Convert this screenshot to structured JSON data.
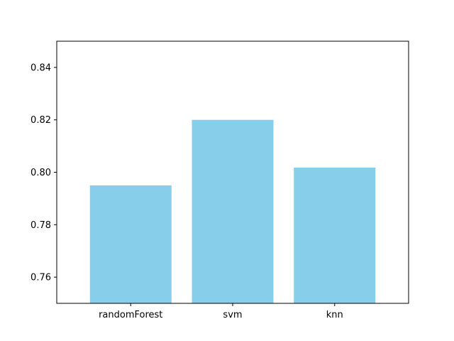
{
  "chart_data": {
    "type": "bar",
    "categories": [
      "randomForest",
      "svm",
      "knn"
    ],
    "values": [
      0.795,
      0.82,
      0.8018
    ],
    "ylim": [
      0.75,
      0.85
    ],
    "yticks": [
      "0.76",
      "0.78",
      "0.80",
      "0.82",
      "0.84"
    ],
    "title": "",
    "xlabel": "",
    "ylabel": "",
    "grid": false,
    "bar_color": "#87CEEB"
  }
}
